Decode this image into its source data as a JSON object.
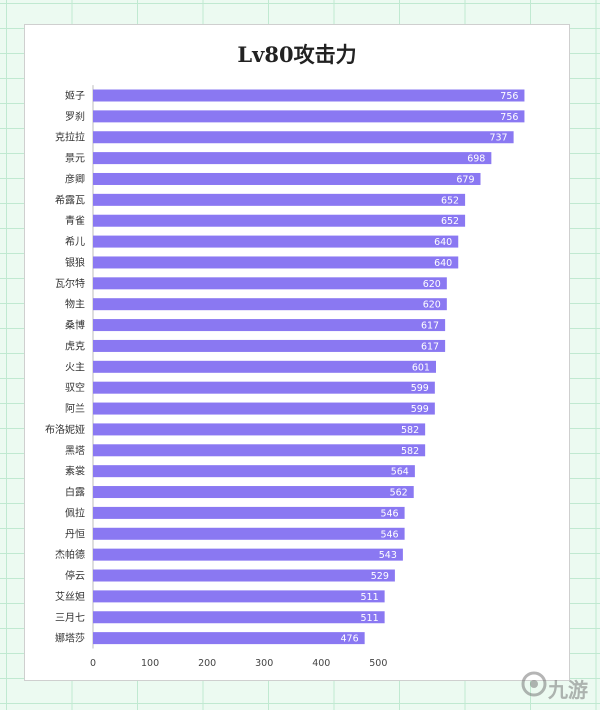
{
  "chart_data": {
    "type": "bar",
    "orientation": "horizontal",
    "title": "Lv80攻击力",
    "categories": [
      "姬子",
      "罗刹",
      "克拉拉",
      "景元",
      "彦卿",
      "希露瓦",
      "青雀",
      "希儿",
      "银狼",
      "瓦尔特",
      "物主",
      "桑博",
      "虎克",
      "火主",
      "驭空",
      "阿兰",
      "布洛妮娅",
      "黑塔",
      "素裳",
      "白露",
      "佩拉",
      "丹恒",
      "杰帕德",
      "停云",
      "艾丝妲",
      "三月七",
      "娜塔莎"
    ],
    "values": [
      756,
      756,
      737,
      698,
      679,
      652,
      652,
      640,
      640,
      620,
      620,
      617,
      617,
      601,
      599,
      599,
      582,
      582,
      564,
      562,
      546,
      546,
      543,
      529,
      511,
      511,
      476
    ],
    "x_ticks": [
      "0",
      "100",
      "200",
      "300",
      "400",
      "500"
    ],
    "xlim": [
      0,
      800
    ],
    "grid": false,
    "bar_color": "#8a78f2"
  },
  "watermark": {
    "text": "九游"
  }
}
